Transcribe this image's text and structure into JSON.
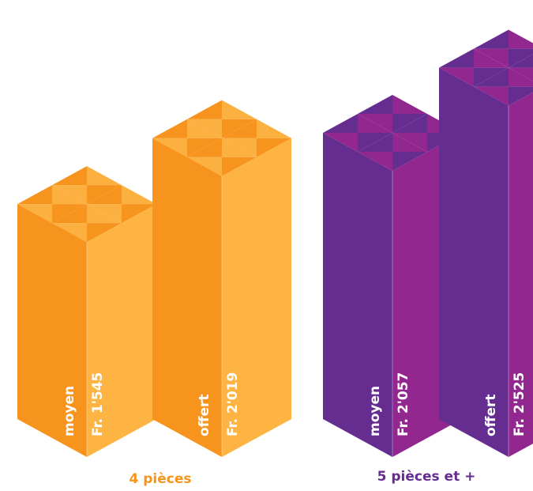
{
  "chart_data": {
    "type": "bar",
    "style": "isometric 3D columns",
    "groups": [
      {
        "label": "4 pièces",
        "color": "#f7941d",
        "bars": [
          {
            "name": "moyen",
            "label": "Fr. 1'545",
            "value": 1545
          },
          {
            "name": "offert",
            "label": "Fr. 2'019",
            "value": 2019
          }
        ]
      },
      {
        "label": "5 pièces et +",
        "color": "#662d91",
        "bars": [
          {
            "name": "moyen",
            "label": "Fr. 2'057",
            "value": 2057
          },
          {
            "name": "offert",
            "label": "Fr. 2'525",
            "value": 2525
          }
        ]
      }
    ],
    "palette": {
      "orange": {
        "left": "#f7941d",
        "right": "#fdb443",
        "top": "#fbb040",
        "top_dark": "#f7941d"
      },
      "purple": {
        "left": "#662d91",
        "right": "#92278f",
        "top": "#92278f",
        "top_dark": "#662d91"
      }
    },
    "title": "",
    "xlabel": "",
    "ylabel": "",
    "legend": "none",
    "grid": false
  }
}
